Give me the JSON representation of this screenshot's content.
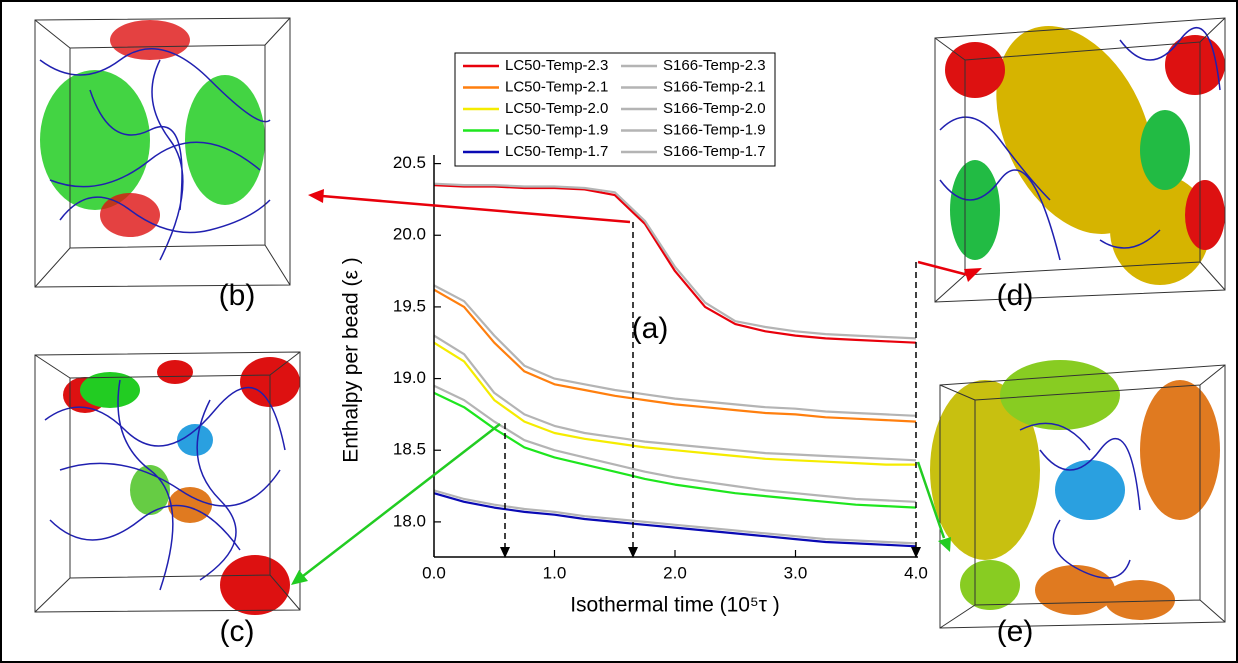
{
  "chart_data": {
    "type": "line",
    "x_label": "Isothermal time (10⁵τ )",
    "y_label": "Enthalpy per bead (ε )",
    "annotations": [
      "(a)",
      "(b)",
      "(c)",
      "(d)",
      "(e)"
    ],
    "xlim": [
      0,
      4.0
    ],
    "ylim": [
      17.755,
      20.56
    ],
    "xticks": [
      {
        "value": 0,
        "label": "0.0"
      },
      {
        "value": 1,
        "label": "1.0"
      },
      {
        "value": 2,
        "label": "2.0"
      },
      {
        "value": 3,
        "label": "3.0"
      },
      {
        "value": 4,
        "label": "4.0"
      }
    ],
    "yticks": [
      {
        "value": 18,
        "label": "18.0"
      },
      18.5,
      {
        "value": 19,
        "label": "19.0"
      },
      19.5,
      {
        "value": 20,
        "label": "20.0"
      },
      20.5
    ],
    "x": [
      0,
      0.25,
      0.5,
      0.75,
      1.0,
      1.25,
      1.5,
      1.75,
      2.0,
      2.25,
      2.5,
      2.75,
      3.0,
      3.25,
      3.5,
      3.75,
      4.0
    ],
    "series": [
      {
        "name": "LC50-Temp-2.3",
        "color": "#e8000b",
        "values": [
          20.35,
          20.34,
          20.34,
          20.33,
          20.33,
          20.32,
          20.28,
          20.08,
          19.75,
          19.5,
          19.38,
          19.33,
          19.3,
          19.28,
          19.27,
          19.26,
          19.25
        ]
      },
      {
        "name": "LC50-Temp-2.1",
        "color": "#ff7f0e",
        "values": [
          19.62,
          19.5,
          19.25,
          19.05,
          18.96,
          18.92,
          18.88,
          18.85,
          18.82,
          18.8,
          18.78,
          18.76,
          18.75,
          18.73,
          18.72,
          18.71,
          18.7
        ]
      },
      {
        "name": "LC50-Temp-2.0",
        "color": "#f5ec00",
        "values": [
          19.25,
          19.12,
          18.85,
          18.7,
          18.62,
          18.58,
          18.55,
          18.52,
          18.5,
          18.48,
          18.46,
          18.44,
          18.43,
          18.42,
          18.41,
          18.4,
          18.4
        ]
      },
      {
        "name": "LC50-Temp-1.9",
        "color": "#1ee61e",
        "values": [
          18.9,
          18.8,
          18.65,
          18.52,
          18.45,
          18.4,
          18.35,
          18.3,
          18.26,
          18.23,
          18.2,
          18.18,
          18.16,
          18.14,
          18.12,
          18.11,
          18.1
        ]
      },
      {
        "name": "LC50-Temp-1.7",
        "color": "#0a0ab4",
        "values": [
          18.2,
          18.14,
          18.1,
          18.07,
          18.05,
          18.02,
          18.0,
          17.98,
          17.96,
          17.94,
          17.92,
          17.9,
          17.88,
          17.86,
          17.85,
          17.84,
          17.83
        ]
      },
      {
        "name": "S166-Temp-2.3",
        "color": "#b4b4b4",
        "values": [
          20.36,
          20.35,
          20.35,
          20.34,
          20.34,
          20.33,
          20.3,
          20.1,
          19.78,
          19.53,
          19.4,
          19.36,
          19.33,
          19.31,
          19.3,
          19.29,
          19.28
        ]
      },
      {
        "name": "S166-Temp-2.1",
        "color": "#b4b4b4",
        "values": [
          19.65,
          19.54,
          19.3,
          19.09,
          19.0,
          18.96,
          18.92,
          18.89,
          18.86,
          18.84,
          18.82,
          18.8,
          18.79,
          18.77,
          18.76,
          18.75,
          18.74
        ]
      },
      {
        "name": "S166-Temp-2.0",
        "color": "#b4b4b4",
        "values": [
          19.3,
          19.17,
          18.9,
          18.75,
          18.67,
          18.62,
          18.59,
          18.56,
          18.54,
          18.52,
          18.5,
          18.48,
          18.47,
          18.46,
          18.45,
          18.44,
          18.43
        ]
      },
      {
        "name": "S166-Temp-1.9",
        "color": "#b4b4b4",
        "values": [
          18.95,
          18.85,
          18.7,
          18.57,
          18.5,
          18.45,
          18.4,
          18.35,
          18.31,
          18.28,
          18.25,
          18.22,
          18.2,
          18.18,
          18.16,
          18.15,
          18.14
        ]
      },
      {
        "name": "S166-Temp-1.7",
        "color": "#b4b4b4",
        "values": [
          18.22,
          18.16,
          18.12,
          18.09,
          18.07,
          18.04,
          18.02,
          18.0,
          17.98,
          17.96,
          17.94,
          17.92,
          17.9,
          17.88,
          17.87,
          17.86,
          17.85
        ]
      }
    ]
  }
}
